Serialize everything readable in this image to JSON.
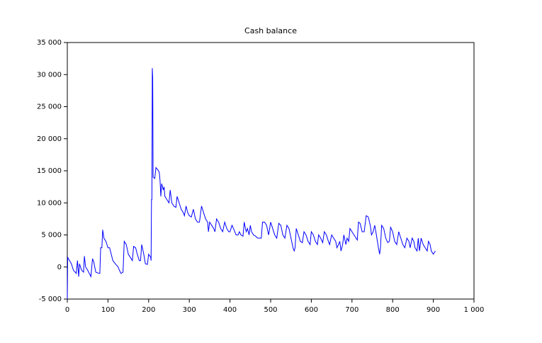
{
  "chart_data": {
    "type": "line",
    "title": "Cash balance",
    "x": [
      0,
      1,
      10,
      15,
      22,
      25,
      28,
      30,
      35,
      40,
      42,
      45,
      50,
      58,
      62,
      65,
      70,
      78,
      80,
      82,
      85,
      87,
      90,
      95,
      100,
      104,
      108,
      112,
      118,
      125,
      128,
      132,
      137,
      140,
      145,
      150,
      155,
      160,
      163,
      168,
      172,
      177,
      180,
      183,
      188,
      192,
      197,
      200,
      205,
      206,
      207,
      208,
      209,
      210,
      211,
      215,
      218,
      222,
      226,
      228,
      230,
      232,
      236,
      238,
      240,
      245,
      250,
      253,
      257,
      262,
      267,
      270,
      275,
      280,
      285,
      288,
      292,
      296,
      300,
      305,
      310,
      315,
      320,
      325,
      330,
      335,
      340,
      345,
      347,
      350,
      355,
      360,
      363,
      367,
      372,
      377,
      382,
      387,
      392,
      397,
      400,
      405,
      410,
      415,
      420,
      423,
      427,
      432,
      435,
      438,
      440,
      443,
      447,
      450,
      453,
      458,
      463,
      468,
      472,
      477,
      480,
      485,
      490,
      495,
      500,
      505,
      510,
      515,
      520,
      525,
      530,
      535,
      540,
      545,
      550,
      555,
      558,
      560,
      563,
      568,
      573,
      578,
      582,
      587,
      592,
      597,
      600,
      605,
      610,
      615,
      618,
      623,
      628,
      632,
      637,
      642,
      645,
      650,
      655,
      660,
      663,
      667,
      670,
      673,
      677,
      680,
      685,
      688,
      692,
      695,
      700,
      705,
      710,
      713,
      716,
      720,
      725,
      730,
      735,
      740,
      745,
      748,
      752,
      756,
      760,
      765,
      768,
      770,
      773,
      778,
      783,
      788,
      792,
      795,
      800,
      805,
      810,
      815,
      820,
      825,
      830,
      835,
      840,
      843,
      848,
      852,
      855,
      860,
      863,
      866,
      870,
      875,
      880,
      885,
      888,
      892,
      895,
      900,
      905
    ],
    "series": [
      {
        "name": "Cash balance",
        "color": "#0000ff",
        "values": [
          -5000,
          1500,
          500,
          -500,
          -1000,
          1000,
          -1500,
          500,
          -500,
          -800,
          1700,
          0,
          -500,
          -1500,
          1300,
          800,
          -800,
          -1000,
          -1000,
          3000,
          3000,
          5800,
          4500,
          4000,
          3000,
          3000,
          2000,
          1000,
          500,
          0,
          -500,
          -1000,
          -800,
          4000,
          3500,
          2000,
          1500,
          1000,
          3200,
          3000,
          2000,
          1000,
          1000,
          3500,
          2000,
          500,
          400,
          2000,
          1500,
          1000,
          10500,
          10500,
          31000,
          29500,
          14000,
          13800,
          15500,
          15200,
          14800,
          13500,
          11000,
          13000,
          12000,
          12500,
          11000,
          10500,
          10000,
          12000,
          10000,
          9500,
          9300,
          11000,
          10000,
          9000,
          8500,
          8000,
          9500,
          8500,
          8000,
          7800,
          9000,
          7500,
          7000,
          7000,
          9500,
          8500,
          7500,
          7000,
          5500,
          7000,
          6500,
          6000,
          5500,
          7500,
          7000,
          6000,
          5500,
          7000,
          6000,
          5500,
          5500,
          6500,
          5800,
          5000,
          5000,
          5500,
          5000,
          4800,
          7000,
          6000,
          5500,
          6000,
          5000,
          6500,
          5500,
          5000,
          4800,
          4500,
          4500,
          4500,
          7000,
          7000,
          6500,
          5000,
          7000,
          6000,
          5000,
          4500,
          6800,
          6500,
          5000,
          4500,
          6500,
          6000,
          4500,
          3000,
          2500,
          3000,
          6000,
          5000,
          4000,
          3800,
          5500,
          5000,
          4000,
          3500,
          5500,
          5000,
          4000,
          3500,
          5000,
          4500,
          3800,
          5500,
          5000,
          4000,
          3500,
          5000,
          4500,
          4000,
          3000,
          3500,
          4000,
          2500,
          3500,
          5000,
          3500,
          4500,
          4000,
          6000,
          5500,
          5000,
          4500,
          4200,
          7000,
          6800,
          5500,
          5500,
          8000,
          7800,
          6500,
          5000,
          5500,
          6500,
          5000,
          3000,
          2000,
          3000,
          6500,
          6000,
          4500,
          3800,
          4000,
          6200,
          5500,
          4000,
          3500,
          5500,
          4500,
          3500,
          3000,
          4500,
          4000,
          3000,
          4500,
          4000,
          3000,
          2500,
          4500,
          2500,
          4500,
          3500,
          3000,
          2500,
          4000,
          3500,
          2500,
          2000,
          2500
        ]
      }
    ],
    "xlim": [
      0,
      1000
    ],
    "ylim": [
      -5000,
      35000
    ],
    "xticks": [
      0,
      100,
      200,
      300,
      400,
      500,
      600,
      700,
      800,
      900,
      {
        "value": 1000,
        "label": "1 000"
      }
    ],
    "yticks": [
      {
        "value": -5000,
        "label": "-5 000"
      },
      0,
      {
        "value": 5000,
        "label": "5 000"
      },
      {
        "value": 10000,
        "label": "10 000"
      },
      {
        "value": 15000,
        "label": "15 000"
      },
      {
        "value": 20000,
        "label": "20 000"
      },
      {
        "value": 25000,
        "label": "25 000"
      },
      {
        "value": 30000,
        "label": "30 000"
      },
      {
        "value": 35000,
        "label": "35 000"
      }
    ]
  }
}
